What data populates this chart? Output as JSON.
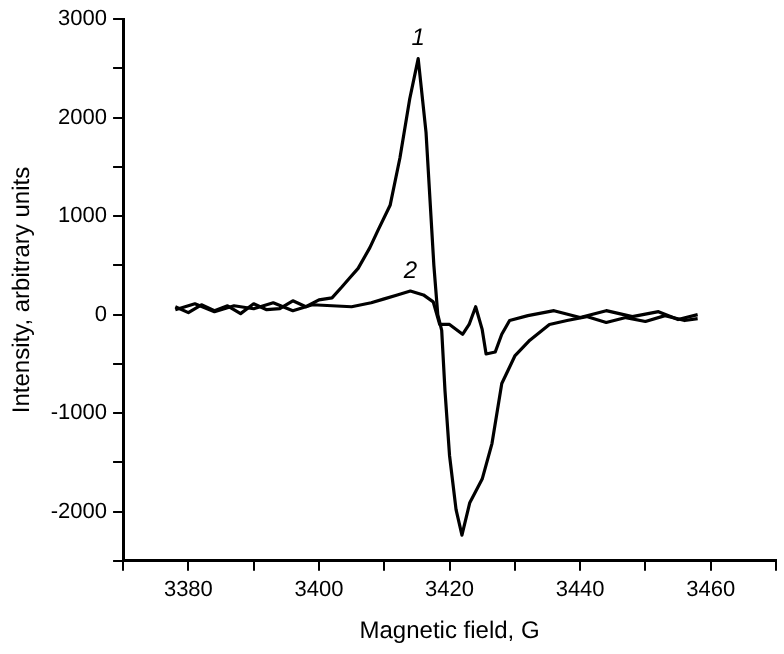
{
  "chart_data": {
    "type": "line",
    "xlabel": "Magnetic field, G",
    "ylabel": "Intensity, arbitrary units",
    "xlim": [
      3370,
      3470
    ],
    "xticks": [
      {
        "value": 3370,
        "label": null
      },
      3380,
      {
        "value": 3390,
        "label": null
      },
      3400,
      {
        "value": 3410,
        "label": null
      },
      3420,
      {
        "value": 3430,
        "label": null
      },
      3440,
      {
        "value": 3450,
        "label": null
      },
      3460,
      {
        "value": 3470,
        "label": null
      }
    ],
    "ylim": [
      -2500,
      3000
    ],
    "yticks": [
      {
        "value": -2500,
        "label": null
      },
      -2000,
      {
        "value": -1500,
        "label": null
      },
      -1000,
      {
        "value": -500,
        "label": null
      },
      0,
      {
        "value": 500,
        "label": null
      },
      1000,
      {
        "value": 1500,
        "label": null
      },
      2000,
      {
        "value": 2500,
        "label": null
      },
      3000
    ],
    "grid": false,
    "legend": false,
    "marker": "none",
    "line_style": "solid",
    "series": [
      {
        "color": "#000000",
        "x": [
          3378,
          3380,
          3382,
          3384,
          3386,
          3388,
          3390,
          3392,
          3394,
          3396,
          3398,
          3400,
          3402,
          3403.5,
          3404.8,
          3406,
          3407.8,
          3409,
          3410.9,
          3412.4,
          3413.9,
          3415.2,
          3416.4,
          3417.6,
          3418.2,
          3418.8,
          3419.3,
          3420,
          3421,
          3421.9,
          3423.1,
          3425,
          3426.5,
          3428,
          3430,
          3432.3,
          3435.3,
          3438,
          3441,
          3444,
          3447,
          3450,
          3453,
          3456,
          3458
        ],
        "values": [
          80,
          20,
          100,
          40,
          90,
          10,
          110,
          50,
          60,
          140,
          80,
          150,
          170,
          280,
          380,
          470,
          680,
          850,
          1110,
          1590,
          2190,
          2600,
          1850,
          500,
          0,
          -160,
          -770,
          -1430,
          -1980,
          -2240,
          -1910,
          -1670,
          -1310,
          -700,
          -420,
          -260,
          -100,
          -60,
          -20,
          -80,
          -30,
          -70,
          -10,
          -60,
          -40
        ]
      },
      {
        "color": "#000000",
        "x": [
          3378,
          3381,
          3384,
          3387,
          3390,
          3393,
          3396,
          3399,
          3402,
          3405,
          3408,
          3410,
          3412,
          3414,
          3416,
          3417.5,
          3418.5,
          3420,
          3422,
          3423,
          3424,
          3425,
          3425.6,
          3427,
          3428,
          3429.2,
          3432,
          3436,
          3440,
          3444,
          3448,
          3452,
          3455,
          3458
        ],
        "values": [
          50,
          110,
          30,
          90,
          60,
          120,
          40,
          100,
          90,
          80,
          120,
          160,
          200,
          240,
          200,
          130,
          -100,
          -100,
          -200,
          -100,
          80,
          -150,
          -400,
          -380,
          -200,
          -60,
          -10,
          40,
          -30,
          40,
          -20,
          30,
          -50,
          0
        ]
      }
    ],
    "annotations": [
      "1",
      "2"
    ]
  }
}
